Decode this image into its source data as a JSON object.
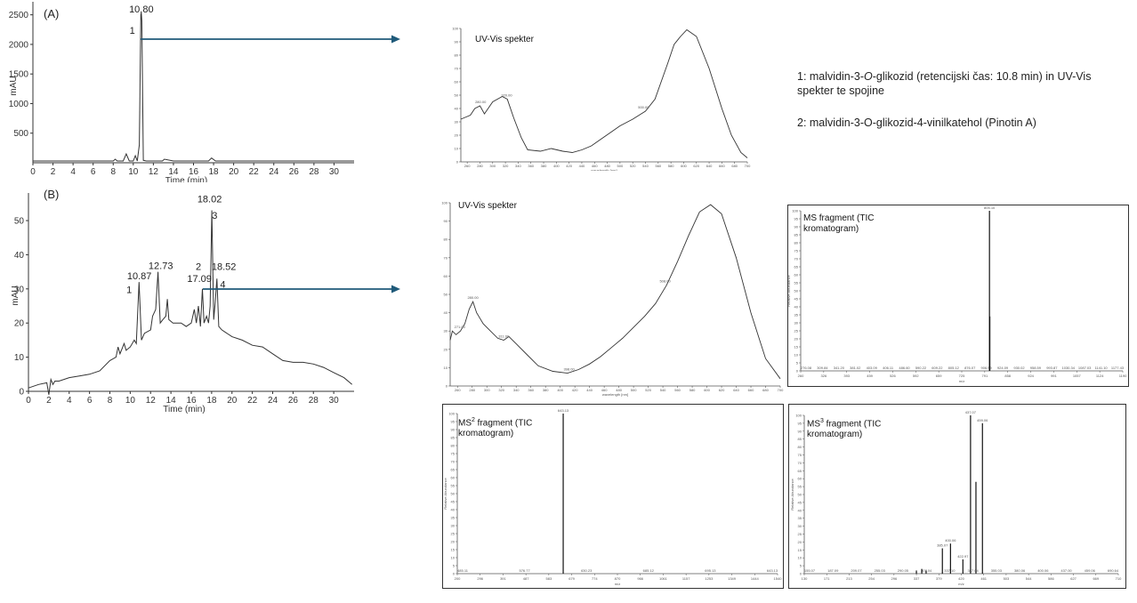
{
  "panels": {
    "a_label": "(A)",
    "b_label": "(B)"
  },
  "notes": {
    "line1_prefix": "1: malvidin-3-",
    "line1_italic": "O",
    "line1_suffix": "-glikozid (retencijski čas: 10.8 min) in UV-Vis spekter te spojine",
    "line2": "2: malvidin-3-O-glikozid-4-vinilkatehol (Pinotin A)"
  },
  "colors": {
    "arrow": "#1f5a7a",
    "trace": "#333333"
  },
  "chart_data": [
    {
      "id": "chromA",
      "type": "line",
      "xlabel": "Time (min)",
      "ylabel": "mAU",
      "xlim": [
        0,
        32
      ],
      "ylim": [
        0,
        2600
      ],
      "xticks": [
        0,
        2,
        4,
        6,
        8,
        10,
        12,
        14,
        16,
        18,
        20,
        22,
        24,
        26,
        28,
        30
      ],
      "yticks": [
        500,
        1000,
        1500,
        2000,
        2500
      ],
      "peak_labels": [
        {
          "text": "10.80",
          "x": 10.8,
          "y": 2540
        },
        {
          "text": "1",
          "x": 9.9,
          "y": 2180
        }
      ],
      "series": [
        {
          "x": [
            0,
            8,
            8.2,
            8.4,
            9.0,
            9.3,
            9.6,
            10.0,
            10.2,
            10.4,
            10.6,
            10.75,
            10.8,
            10.85,
            11.0,
            11.3,
            12,
            12.9,
            13.1,
            14,
            15.5,
            16.5,
            17.5,
            17.8,
            18.2,
            20,
            32
          ],
          "y": [
            30,
            30,
            60,
            30,
            30,
            150,
            30,
            30,
            120,
            30,
            300,
            2500,
            2540,
            2400,
            40,
            30,
            30,
            30,
            60,
            30,
            30,
            30,
            30,
            80,
            30,
            30,
            30
          ]
        }
      ]
    },
    {
      "id": "chromB",
      "type": "line",
      "xlabel": "Time (min)",
      "ylabel": "mAU",
      "xlim": [
        0,
        32
      ],
      "ylim": [
        0,
        56
      ],
      "xticks": [
        0,
        2,
        4,
        6,
        8,
        10,
        12,
        14,
        16,
        18,
        20,
        22,
        24,
        26,
        28,
        30
      ],
      "yticks": [
        0,
        10,
        20,
        30,
        40,
        50
      ],
      "peak_labels": [
        {
          "text": "18.02",
          "x": 17.8,
          "y": 55.3
        },
        {
          "text": "3",
          "x": 18.3,
          "y": 50.5
        },
        {
          "text": "12.73",
          "x": 13.0,
          "y": 35.8
        },
        {
          "text": "10.87",
          "x": 10.9,
          "y": 32.8
        },
        {
          "text": "1",
          "x": 9.9,
          "y": 28.8
        },
        {
          "text": "2",
          "x": 16.7,
          "y": 35.5
        },
        {
          "text": "17.09",
          "x": 16.8,
          "y": 32.0
        },
        {
          "text": "18.52",
          "x": 19.2,
          "y": 35.5
        },
        {
          "text": "4",
          "x": 19.1,
          "y": 30.3
        }
      ],
      "series": [
        {
          "x": [
            0,
            1,
            1.8,
            2.0,
            2.2,
            2.4,
            2.6,
            3,
            4,
            5,
            6,
            7,
            8,
            8.6,
            8.8,
            9,
            9.4,
            9.6,
            10,
            10.4,
            10.6,
            10.87,
            11.1,
            11.4,
            12,
            12.2,
            12.5,
            12.73,
            12.95,
            13.2,
            13.5,
            13.65,
            13.8,
            14.2,
            15,
            15.5,
            16,
            16.3,
            16.5,
            16.7,
            16.9,
            17.09,
            17.25,
            17.5,
            17.7,
            17.85,
            18.02,
            18.2,
            18.35,
            18.52,
            18.7,
            19,
            20,
            21,
            22,
            23,
            24,
            25,
            26,
            27,
            28,
            29,
            30,
            31,
            31.8
          ],
          "y": [
            1,
            2,
            2.5,
            -1,
            3.5,
            2,
            3,
            3,
            4,
            4.5,
            5,
            6,
            9,
            10,
            13,
            11,
            14,
            12,
            13,
            15,
            14,
            32,
            15,
            17,
            18,
            22,
            24,
            35,
            20,
            21,
            22,
            27,
            21,
            20,
            20,
            19,
            20,
            24,
            20,
            25,
            19,
            30,
            20,
            22,
            20,
            25,
            53,
            21,
            26,
            33,
            19,
            18,
            16,
            15,
            13.5,
            13,
            11,
            9,
            8.5,
            8.5,
            8,
            7,
            5.5,
            4,
            2
          ]
        }
      ]
    },
    {
      "id": "uvA",
      "type": "line",
      "title": "UV-Vis spekter",
      "xlabel": "wavelength [nm]",
      "peak_labels": [
        {
          "text": "280.00",
          "x": 281
        },
        {
          "text": "320.00",
          "x": 322
        },
        {
          "text": "500.00",
          "x": 537
        }
      ],
      "series": [
        {
          "x": [
            250,
            255,
            265,
            272,
            280,
            287,
            300,
            315,
            323,
            333,
            345,
            355,
            375,
            392,
            410,
            425,
            440,
            455,
            470,
            485,
            500,
            520,
            540,
            555,
            575,
            585,
            595,
            605,
            620,
            640,
            660,
            675,
            690,
            700
          ],
          "y": [
            32,
            33,
            35,
            40,
            42,
            36,
            45,
            49,
            47,
            33,
            18,
            9,
            8,
            10,
            8,
            7,
            9,
            12,
            17,
            22,
            27,
            32,
            38,
            47,
            74,
            88,
            94,
            99,
            94,
            70,
            40,
            20,
            7,
            3
          ]
        }
      ]
    },
    {
      "id": "uvB",
      "type": "line",
      "title": "UV-Vis spekter",
      "xlabel": "wavelength [nm]",
      "peak_labels": [
        {
          "text": "271.00",
          "x": 263
        },
        {
          "text": "280.00",
          "x": 281
        },
        {
          "text": "311.00",
          "x": 323
        },
        {
          "text": "398.00",
          "x": 412
        },
        {
          "text": "508.00",
          "x": 543
        }
      ],
      "series": [
        {
          "x": [
            250,
            253,
            258,
            264,
            270,
            276,
            281,
            286,
            295,
            305,
            315,
            323,
            330,
            340,
            355,
            370,
            390,
            410,
            425,
            440,
            455,
            470,
            485,
            500,
            515,
            530,
            545,
            560,
            575,
            590,
            605,
            620,
            640,
            660,
            680,
            700
          ],
          "y": [
            25,
            30,
            28,
            30,
            34,
            42,
            46,
            40,
            34,
            30,
            26,
            25,
            27,
            23,
            17,
            11,
            8,
            7,
            9,
            12,
            16,
            21,
            26,
            32,
            38,
            45,
            55,
            68,
            82,
            95,
            99,
            94,
            70,
            40,
            15,
            4
          ]
        }
      ]
    },
    {
      "id": "ms1",
      "type": "bar",
      "title": "MS fragment (TIC kromatogram)",
      "xlabel": "m/z",
      "ylabel": "Relative Abundance",
      "peaks_x": [
        805.1
      ],
      "peaks_y": [
        100
      ],
      "extra_x": [
        806.1
      ],
      "extra_y": [
        34
      ],
      "tick_labels": [
        "276.08",
        "309.84",
        "341.20",
        "381.02",
        "403.09",
        "406.11",
        "486.60",
        "590.22",
        "609.22",
        "805.12",
        "876.07",
        "906.99",
        "924.09",
        "930.02",
        "958.59",
        "993.87",
        "1030.34",
        "1087.03",
        "1141.10",
        "1177.43"
      ]
    },
    {
      "id": "ms2",
      "type": "bar",
      "title": "MS2 fragment (TIC kromatogram)",
      "xlabel": "m/z",
      "ylabel": "Relative Abundance",
      "peaks_x": [
        643.13
      ],
      "peaks_y": [
        100
      ],
      "tick_labels": [
        "485.11",
        "576.77",
        "630.23",
        "685.12",
        "695.13",
        "643.13"
      ]
    },
    {
      "id": "ms3",
      "type": "bar",
      "title": "MS3 fragment (TIC kromatogram)",
      "xlabel": "m/z",
      "ylabel": "Relative Abundance",
      "peaks_x": [
        337.1,
        347.04,
        355.03,
        385.07,
        400.06,
        422.97,
        437.07,
        459.06
      ],
      "peaks_y": [
        2,
        3,
        2,
        16,
        19,
        9,
        100,
        95
      ],
      "extra_x": [
        447.07
      ],
      "extra_y": [
        58
      ],
      "tick_labels": [
        "155.07",
        "187.09",
        "209.07",
        "255.03",
        "290.05",
        "307.04",
        "337.10",
        "347.04",
        "355.03",
        "380.06",
        "400.06",
        "437.00",
        "459.06",
        "690.64"
      ]
    }
  ]
}
